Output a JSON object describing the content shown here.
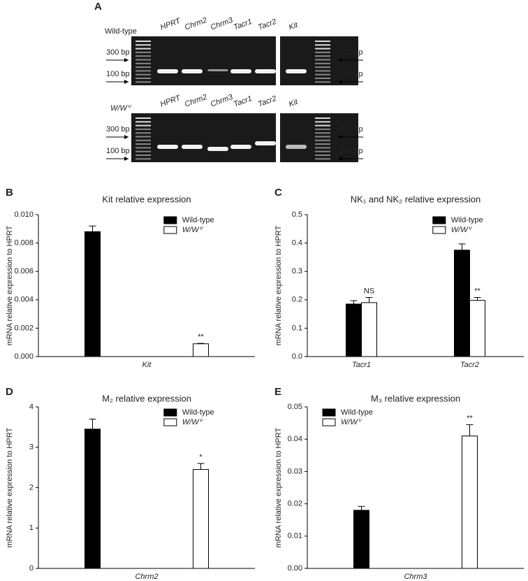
{
  "panel_a": {
    "label": "A",
    "gels": [
      {
        "sample": "Wild-type",
        "lanes": [
          "HPRT",
          "Chrm2",
          "Chrm3",
          "Tacr1",
          "Tacr2",
          "Kit"
        ],
        "markers": [
          "300 bp",
          "100 bp"
        ]
      },
      {
        "sample": "W/Wⱽ",
        "lanes": [
          "HPRT",
          "Chrm2",
          "Chrm3",
          "Tacr1",
          "Tacr2",
          "Kit"
        ],
        "markers": [
          "300 bp",
          "100 bp"
        ]
      }
    ]
  },
  "chart_data": [
    {
      "type": "bar",
      "panel": "B",
      "title": "Kit relative expression",
      "y_label": "mRNA relative expression to HPRT",
      "categories": [
        "Kit"
      ],
      "series": [
        {
          "name": "Wild-type",
          "color": "#000000",
          "values": [
            0.0088
          ],
          "errors": [
            0.0004
          ]
        },
        {
          "name": "W/Wⱽ",
          "color": "#ffffff",
          "values": [
            0.0009
          ],
          "errors": [
            3e-05
          ],
          "annotations": [
            "**"
          ]
        }
      ],
      "ylim": [
        0,
        0.01
      ],
      "yticks": [
        {
          "value": 0,
          "label": "0.000"
        },
        0.002,
        0.004,
        0.006,
        0.008,
        {
          "value": 0.01,
          "label": "0.010"
        }
      ],
      "legend": "upper right"
    },
    {
      "type": "bar",
      "panel": "C",
      "title": "NK₁ and NK₂ relative expression",
      "y_label": "mRNA relative expression to HPRT",
      "categories": [
        "Tacr1",
        "Tacr2"
      ],
      "series": [
        {
          "name": "Wild-type",
          "color": "#000000",
          "values": [
            0.185,
            0.375
          ],
          "errors": [
            0.012,
            0.022
          ]
        },
        {
          "name": "W/Wⱽ",
          "color": "#ffffff",
          "values": [
            0.19,
            0.198
          ],
          "errors": [
            0.018,
            0.01
          ],
          "annotations": [
            "NS",
            "**"
          ]
        }
      ],
      "ylim": [
        0,
        0.5
      ],
      "yticks": [
        {
          "value": 0,
          "label": "0.0"
        },
        0.1,
        0.2,
        0.3,
        0.4,
        0.5
      ],
      "legend": "upper right"
    },
    {
      "type": "bar",
      "panel": "D",
      "title": "M₂ relative expression",
      "y_label": "mRNA relative expression to HPRT",
      "categories": [
        "Chrm2"
      ],
      "series": [
        {
          "name": "Wild-type",
          "color": "#000000",
          "values": [
            3.45
          ],
          "errors": [
            0.25
          ]
        },
        {
          "name": "W/Wⱽ",
          "color": "#ffffff",
          "values": [
            2.45
          ],
          "errors": [
            0.15
          ],
          "annotations": [
            "*"
          ]
        }
      ],
      "ylim": [
        0,
        4
      ],
      "yticks": [
        0,
        1,
        2,
        3,
        4
      ],
      "legend": "upper right"
    },
    {
      "type": "bar",
      "panel": "E",
      "title": "M₃ relative expression",
      "y_label": "mRNA relative expression to HPRT",
      "categories": [
        "Chrm3"
      ],
      "series": [
        {
          "name": "Wild-type",
          "color": "#000000",
          "values": [
            0.018
          ],
          "errors": [
            0.0012
          ]
        },
        {
          "name": "W/Wⱽ",
          "color": "#ffffff",
          "values": [
            0.041
          ],
          "errors": [
            0.0035
          ],
          "annotations": [
            "**"
          ]
        }
      ],
      "ylim": [
        0,
        0.05
      ],
      "yticks": [
        {
          "value": 0,
          "label": "0.00"
        },
        0.01,
        0.02,
        0.03,
        0.04,
        0.05
      ],
      "legend": "upper left"
    }
  ]
}
